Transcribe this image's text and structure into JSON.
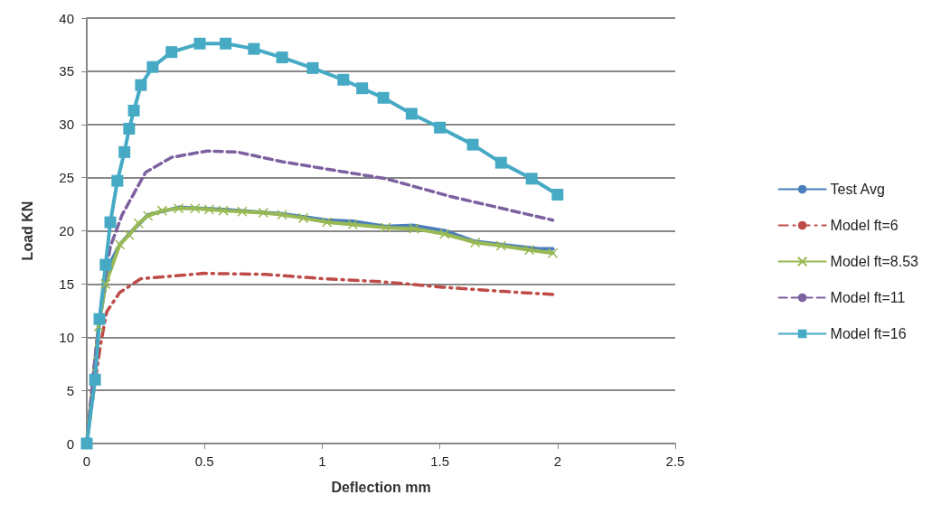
{
  "chart_data": {
    "type": "line",
    "xlabel": "Deflection mm",
    "ylabel": "Load KN",
    "xlim": [
      0,
      2.5
    ],
    "xticks": [
      0,
      0.5,
      1,
      1.5,
      2,
      2.5
    ],
    "ylim": [
      0,
      40
    ],
    "yticks": [
      0,
      5,
      10,
      15,
      20,
      25,
      30,
      35,
      40
    ],
    "grid": "y",
    "legend": "right",
    "series": [
      {
        "name": "Test Avg",
        "color": "#4a7ebb",
        "marker": "none",
        "line_style": "solid",
        "x": [
          0,
          0.03,
          0.05,
          0.08,
          0.1,
          0.14,
          0.18,
          0.26,
          0.39,
          0.58,
          0.83,
          1.02,
          1.13,
          1.27,
          1.39,
          1.52,
          1.65,
          1.8,
          1.92,
          1.98
        ],
        "values": [
          0,
          6,
          11,
          15,
          17,
          18.7,
          19.7,
          21.5,
          22.2,
          22,
          21.6,
          21,
          20.9,
          20.4,
          20.5,
          20,
          19,
          18.6,
          18.3,
          18.3
        ]
      },
      {
        "name": "Model ft=6",
        "color": "#be4b48",
        "marker": "none",
        "line_style": "dashdot",
        "x": [
          0,
          0.03,
          0.06,
          0.085,
          0.14,
          0.23,
          0.5,
          0.76,
          1.0,
          1.26,
          1.51,
          1.77,
          1.99
        ],
        "values": [
          0,
          5,
          9.5,
          12.4,
          14.2,
          15.5,
          16,
          15.9,
          15.5,
          15.2,
          14.7,
          14.3,
          14
        ]
      },
      {
        "name": "Model ft=8.53",
        "color": "#98b954",
        "marker": "cross",
        "line_style": "solid",
        "x": [
          0,
          0.05,
          0.08,
          0.14,
          0.18,
          0.22,
          0.26,
          0.32,
          0.39,
          0.46,
          0.52,
          0.58,
          0.66,
          0.75,
          0.83,
          0.92,
          1.02,
          1.13,
          1.27,
          1.39,
          1.52,
          1.65,
          1.76,
          1.88,
          1.98
        ],
        "values": [
          0,
          11,
          15,
          18.7,
          19.6,
          20.7,
          21.4,
          21.9,
          22.1,
          22.1,
          22,
          21.9,
          21.8,
          21.7,
          21.5,
          21.2,
          20.8,
          20.6,
          20.3,
          20.2,
          19.7,
          18.9,
          18.6,
          18.2,
          17.9
        ]
      },
      {
        "name": "Model ft=11",
        "color": "#7d60a0",
        "marker": "none",
        "line_style": "dashed",
        "x": [
          0,
          0.03,
          0.06,
          0.1,
          0.15,
          0.25,
          0.36,
          0.51,
          0.64,
          0.83,
          1.02,
          1.27,
          1.55,
          1.98
        ],
        "values": [
          0,
          7,
          13,
          18.5,
          21.5,
          25.5,
          26.9,
          27.5,
          27.4,
          26.5,
          25.8,
          24.9,
          23.2,
          21
        ]
      },
      {
        "name": "Model ft=16",
        "color": "#46aac5",
        "marker": "square",
        "line_style": "solid",
        "x": [
          0,
          0.035,
          0.054,
          0.08,
          0.1,
          0.13,
          0.16,
          0.18,
          0.2,
          0.23,
          0.28,
          0.36,
          0.48,
          0.59,
          0.71,
          0.83,
          0.96,
          1.09,
          1.17,
          1.26,
          1.38,
          1.5,
          1.64,
          1.76,
          1.89,
          2.0
        ],
        "values": [
          0,
          6,
          11.7,
          16.8,
          20.8,
          24.7,
          27.4,
          29.6,
          31.3,
          33.7,
          35.4,
          36.8,
          37.6,
          37.6,
          37.1,
          36.3,
          35.3,
          34.2,
          33.4,
          32.5,
          31,
          29.7,
          28.1,
          26.4,
          24.9,
          23.4
        ]
      }
    ]
  }
}
